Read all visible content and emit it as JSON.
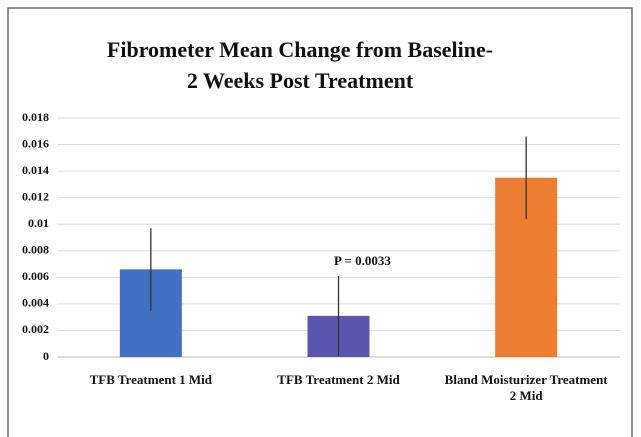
{
  "chart_data": {
    "type": "bar",
    "title": [
      "Fibrometer Mean Change from Baseline-",
      "2 Weeks Post Treatment"
    ],
    "categories": [
      "TFB Treatment 1 Mid",
      "TFB Treatment 2 Mid",
      "Bland Moisturizer Treatment 2 Mid"
    ],
    "values": [
      0.0066,
      0.0031,
      0.0135
    ],
    "errors": [
      0.0031,
      0.003,
      0.0031
    ],
    "colors": [
      "#4271c4",
      "#5a56ae",
      "#ed7d31"
    ],
    "annotations": [
      {
        "text": "P = 0.0033",
        "category": 1
      }
    ],
    "ylim": [
      0,
      0.018
    ],
    "yticks": [
      0,
      0.002,
      0.004,
      0.006,
      0.008,
      0.01,
      0.012,
      0.014,
      0.016,
      0.018
    ],
    "grid": true
  }
}
